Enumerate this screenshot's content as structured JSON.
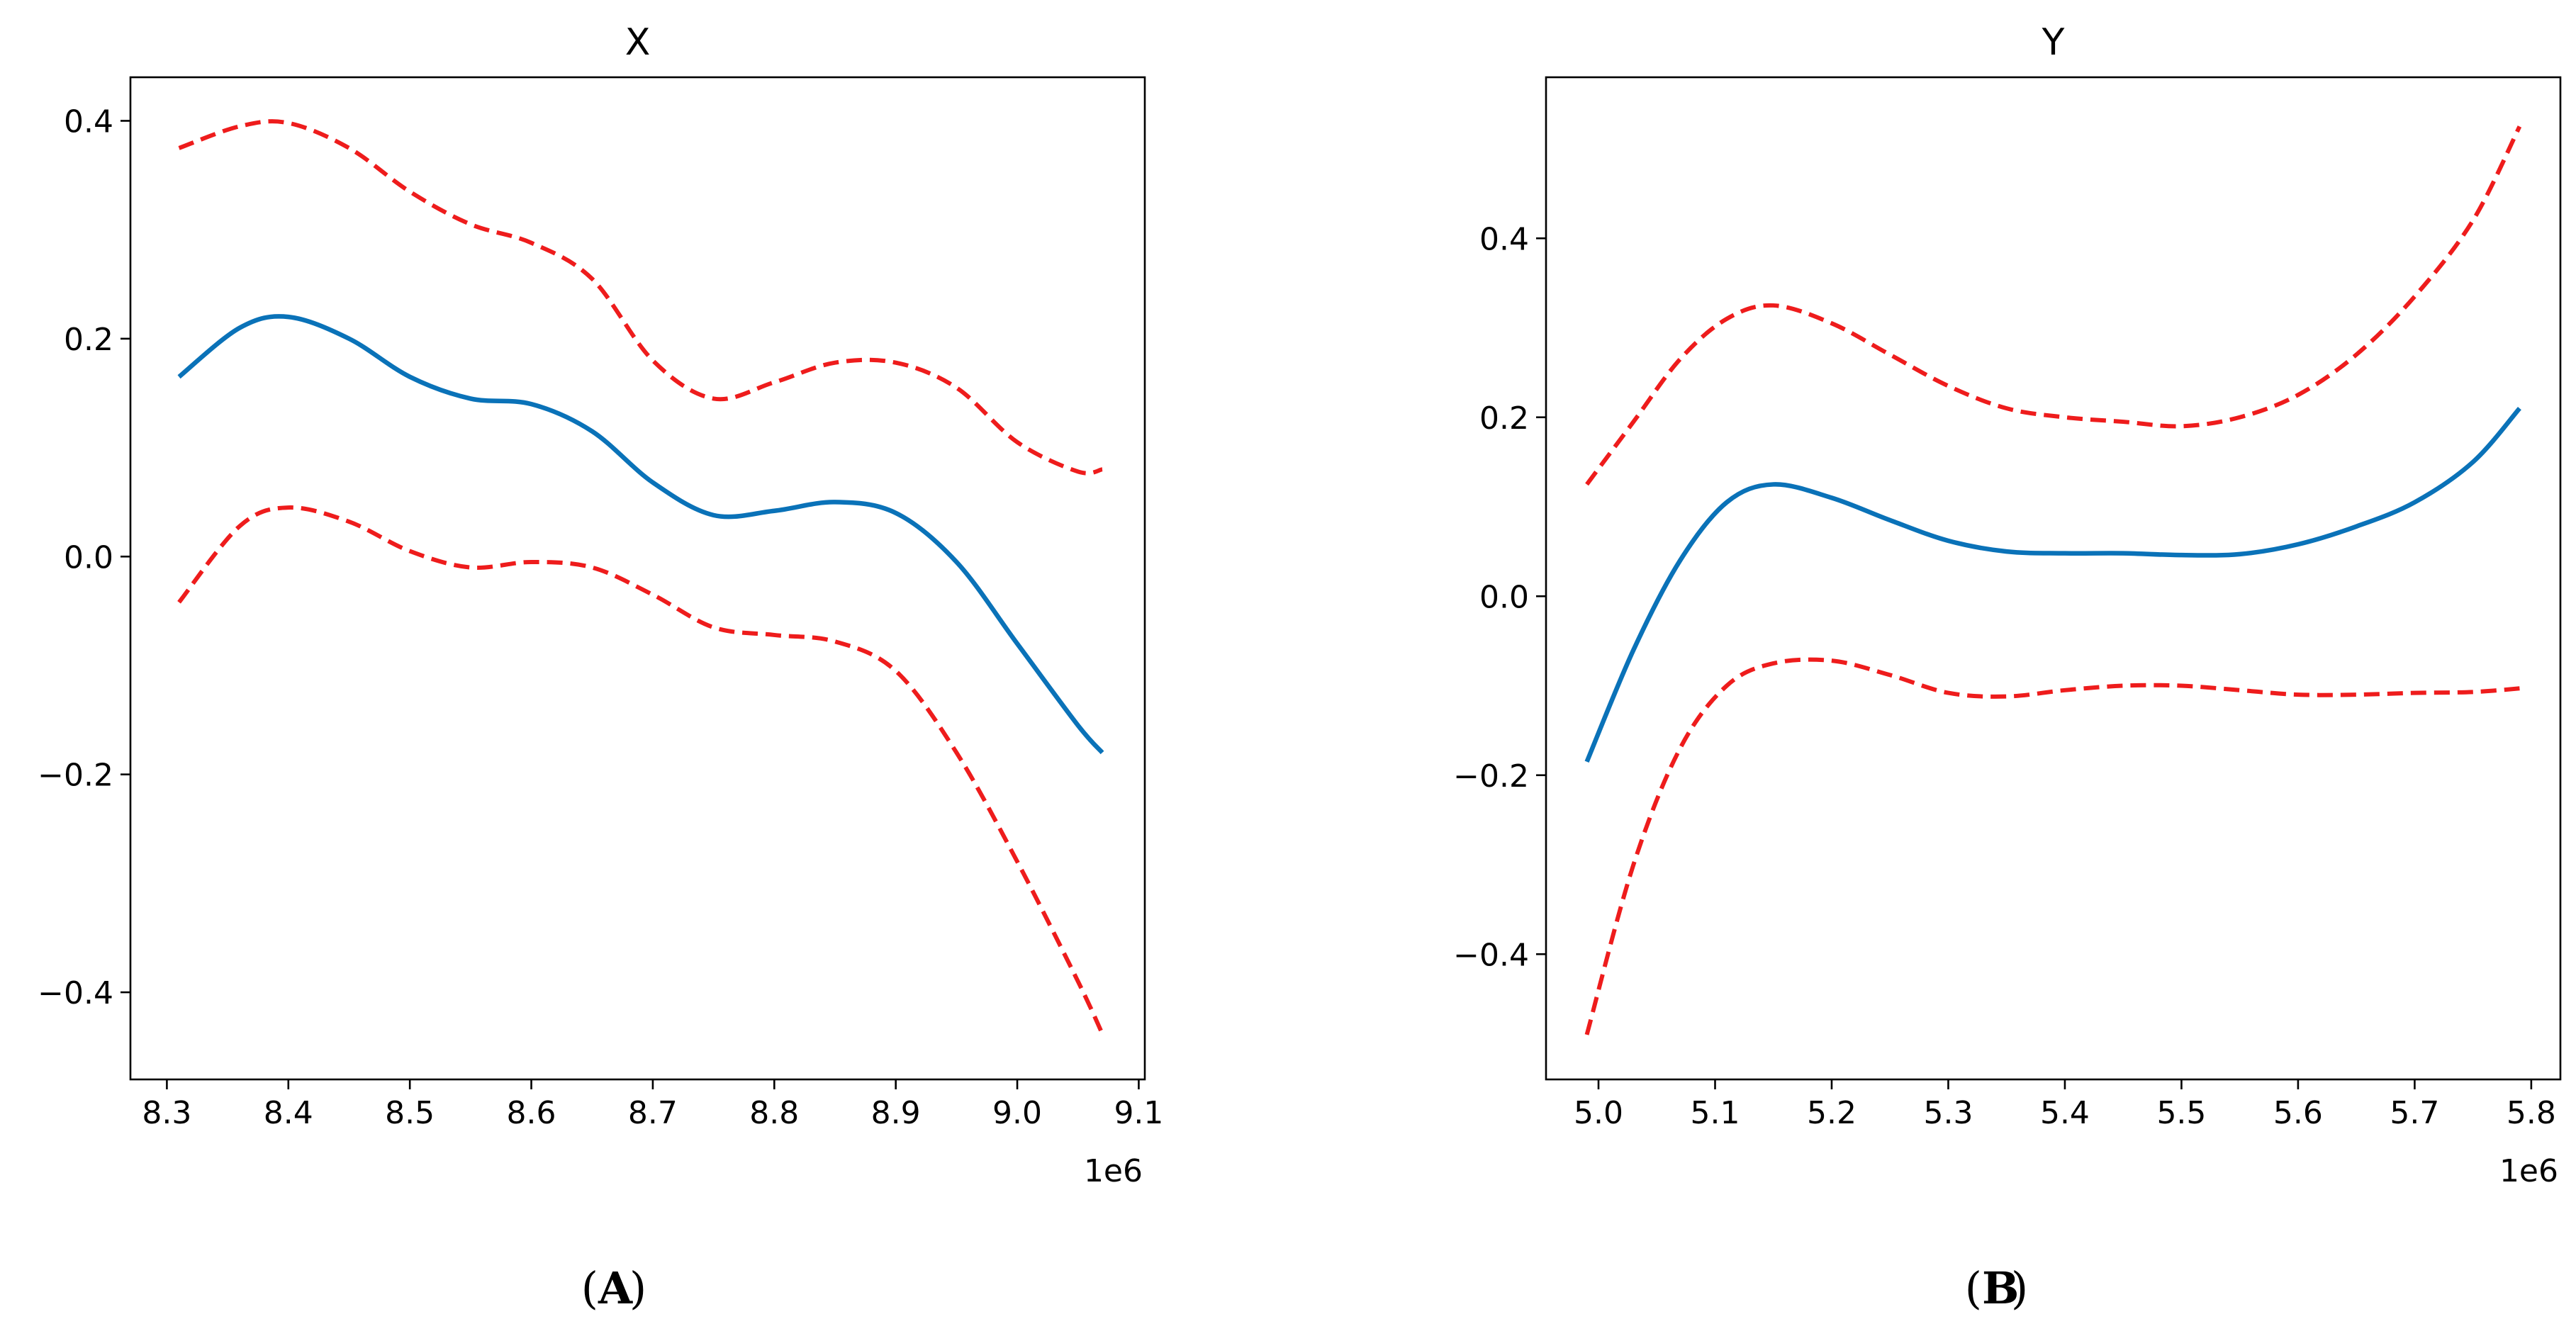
{
  "colors": {
    "estimate": "#0a72b8",
    "confidence_band": "#ee1c1c",
    "axes": "#000000",
    "background": "#ffffff"
  },
  "chart_data": [
    {
      "type": "line",
      "panel_caption": "A",
      "title": "X",
      "xlabel": "",
      "ylabel": "",
      "x_offset_label": "1e6",
      "xlim": [
        8.27,
        9.105
      ],
      "ylim": [
        -0.48,
        0.44
      ],
      "xticks": [
        8.3,
        8.4,
        8.5,
        8.6,
        8.7,
        8.8,
        8.9,
        9.0,
        9.1
      ],
      "xtick_labels": [
        "8.3",
        "8.4",
        "8.5",
        "8.6",
        "8.7",
        "8.8",
        "8.9",
        "9.0",
        "9.1"
      ],
      "yticks": [
        -0.4,
        -0.2,
        0.0,
        0.2,
        0.4
      ],
      "ytick_labels": [
        "−0.4",
        "−0.2",
        "0.0",
        "0.2",
        "0.4"
      ],
      "grid": false,
      "x": [
        8.31,
        8.36,
        8.4,
        8.45,
        8.5,
        8.55,
        8.6,
        8.65,
        8.7,
        8.75,
        8.8,
        8.85,
        8.9,
        8.95,
        9.0,
        9.05,
        9.07
      ],
      "series": [
        {
          "name": "upper",
          "style": "dashed",
          "values": [
            0.375,
            0.395,
            0.398,
            0.375,
            0.335,
            0.305,
            0.288,
            0.255,
            0.18,
            0.145,
            0.16,
            0.178,
            0.178,
            0.155,
            0.105,
            0.078,
            0.08
          ]
        },
        {
          "name": "estimate",
          "style": "solid",
          "values": [
            0.165,
            0.21,
            0.22,
            0.2,
            0.165,
            0.145,
            0.14,
            0.115,
            0.068,
            0.038,
            0.042,
            0.05,
            0.04,
            -0.005,
            -0.08,
            -0.155,
            -0.18
          ]
        },
        {
          "name": "lower",
          "style": "dashed",
          "values": [
            -0.042,
            0.028,
            0.045,
            0.032,
            0.005,
            -0.01,
            -0.005,
            -0.01,
            -0.035,
            -0.065,
            -0.072,
            -0.078,
            -0.105,
            -0.18,
            -0.28,
            -0.39,
            -0.438
          ]
        }
      ]
    },
    {
      "type": "line",
      "panel_caption": "B",
      "title": "Y",
      "xlabel": "",
      "ylabel": "",
      "x_offset_label": "1e6",
      "xlim": [
        4.955,
        5.825
      ],
      "ylim": [
        -0.54,
        0.58
      ],
      "xticks": [
        5.0,
        5.1,
        5.2,
        5.3,
        5.4,
        5.5,
        5.6,
        5.7,
        5.8
      ],
      "xtick_labels": [
        "5.0",
        "5.1",
        "5.2",
        "5.3",
        "5.4",
        "5.5",
        "5.6",
        "5.7",
        "5.8"
      ],
      "yticks": [
        -0.4,
        -0.2,
        0.0,
        0.2,
        0.4
      ],
      "ytick_labels": [
        "−0.4",
        "−0.2",
        "0.0",
        "0.2",
        "0.4"
      ],
      "grid": false,
      "x": [
        4.99,
        5.03,
        5.07,
        5.11,
        5.15,
        5.2,
        5.25,
        5.3,
        5.35,
        5.4,
        5.45,
        5.5,
        5.55,
        5.6,
        5.65,
        5.7,
        5.75,
        5.79
      ],
      "series": [
        {
          "name": "upper",
          "style": "dashed",
          "values": [
            0.125,
            0.195,
            0.265,
            0.31,
            0.325,
            0.305,
            0.27,
            0.235,
            0.21,
            0.2,
            0.195,
            0.19,
            0.2,
            0.225,
            0.27,
            0.335,
            0.42,
            0.525
          ]
        },
        {
          "name": "estimate",
          "style": "solid",
          "values": [
            -0.185,
            -0.06,
            0.04,
            0.105,
            0.125,
            0.11,
            0.085,
            0.062,
            0.05,
            0.048,
            0.048,
            0.046,
            0.047,
            0.058,
            0.078,
            0.105,
            0.15,
            0.21
          ]
        },
        {
          "name": "lower",
          "style": "dashed",
          "values": [
            -0.49,
            -0.3,
            -0.17,
            -0.1,
            -0.075,
            -0.072,
            -0.088,
            -0.108,
            -0.112,
            -0.105,
            -0.1,
            -0.1,
            -0.105,
            -0.11,
            -0.11,
            -0.108,
            -0.107,
            -0.103
          ]
        }
      ]
    }
  ]
}
